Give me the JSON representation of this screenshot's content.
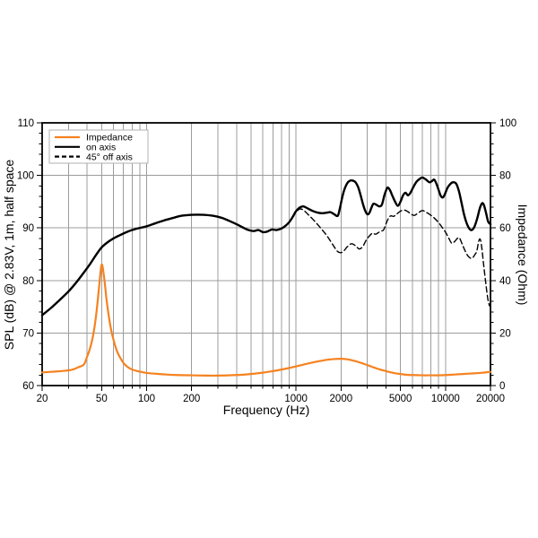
{
  "chart_data": {
    "type": "line",
    "title": "",
    "xlabel": "Frequency (Hz)",
    "ylabel_left": "SPL (dB) @ 2.83V, 1m, half space",
    "ylabel_right": "Impedance (Ohm)",
    "x_scale": "log",
    "xlim": [
      20,
      20000
    ],
    "ylim_left": [
      60,
      110
    ],
    "ylim_right": [
      0,
      100
    ],
    "grid": true,
    "grid_color": "#9c9c9c",
    "frame_color": "#000000",
    "background": "#ffffff",
    "x_major_ticks": [
      {
        "v": 20,
        "label": "20"
      },
      {
        "v": 50,
        "label": "50"
      },
      {
        "v": 100,
        "label": "100"
      },
      {
        "v": 200,
        "label": "200"
      },
      {
        "v": 1000,
        "label": "1000"
      },
      {
        "v": 2000,
        "label": "2000"
      },
      {
        "v": 5000,
        "label": "5000"
      },
      {
        "v": 10000,
        "label": "10000"
      },
      {
        "v": 20000,
        "label": "20000"
      }
    ],
    "x_minor_ticks": [
      30,
      40,
      60,
      70,
      80,
      90,
      300,
      400,
      500,
      600,
      700,
      800,
      900,
      3000,
      4000,
      6000,
      7000,
      8000,
      9000
    ],
    "y_left_ticks": [
      {
        "v": 60,
        "label": "60"
      },
      {
        "v": 70,
        "label": "70"
      },
      {
        "v": 80,
        "label": "80"
      },
      {
        "v": 90,
        "label": "90"
      },
      {
        "v": 100,
        "label": "100"
      },
      {
        "v": 110,
        "label": "110"
      }
    ],
    "y_left_minor_step": 2,
    "y_right_ticks": [
      {
        "v": 0,
        "label": "0"
      },
      {
        "v": 20,
        "label": "20"
      },
      {
        "v": 40,
        "label": "40"
      },
      {
        "v": 60,
        "label": "60"
      },
      {
        "v": 80,
        "label": "80"
      },
      {
        "v": 100,
        "label": "100"
      }
    ],
    "y_right_minor_step": 4,
    "legend": {
      "position": "top-left",
      "items": [
        {
          "label": "Impedance",
          "color": "#f58220",
          "dash": false
        },
        {
          "label": "on axis",
          "color": "#000000",
          "dash": false
        },
        {
          "label": "45° off axis",
          "color": "#000000",
          "dash": true
        }
      ]
    },
    "series": [
      {
        "name": "Impedance",
        "axis": "right",
        "color": "#f58220",
        "dash": false,
        "width": 2.2,
        "points": [
          [
            20,
            5
          ],
          [
            24,
            5.3
          ],
          [
            28,
            5.6
          ],
          [
            32,
            6.1
          ],
          [
            35,
            7
          ],
          [
            38,
            8
          ],
          [
            40,
            11
          ],
          [
            42,
            14.5
          ],
          [
            44,
            19.5
          ],
          [
            46,
            27
          ],
          [
            48,
            37
          ],
          [
            50,
            46
          ],
          [
            52,
            41
          ],
          [
            54,
            32.5
          ],
          [
            56,
            26
          ],
          [
            58,
            21
          ],
          [
            60,
            17.5
          ],
          [
            63,
            13.5
          ],
          [
            66,
            11
          ],
          [
            70,
            8.6
          ],
          [
            75,
            7
          ],
          [
            80,
            6.1
          ],
          [
            90,
            5.3
          ],
          [
            100,
            4.8
          ],
          [
            115,
            4.5
          ],
          [
            135,
            4.2
          ],
          [
            160,
            4
          ],
          [
            200,
            3.9
          ],
          [
            250,
            3.8
          ],
          [
            300,
            3.8
          ],
          [
            400,
            4
          ],
          [
            500,
            4.4
          ],
          [
            600,
            4.9
          ],
          [
            700,
            5.5
          ],
          [
            800,
            6.1
          ],
          [
            900,
            6.7
          ],
          [
            1000,
            7.3
          ],
          [
            1200,
            8.4
          ],
          [
            1400,
            9.2
          ],
          [
            1600,
            9.8
          ],
          [
            1800,
            10.1
          ],
          [
            2000,
            10.2
          ],
          [
            2200,
            10
          ],
          [
            2500,
            9.3
          ],
          [
            2800,
            8.4
          ],
          [
            3200,
            7.2
          ],
          [
            3600,
            6.2
          ],
          [
            4000,
            5.5
          ],
          [
            4500,
            4.8
          ],
          [
            5000,
            4.4
          ],
          [
            5500,
            4.1
          ],
          [
            6000,
            4
          ],
          [
            7000,
            3.9
          ],
          [
            8000,
            3.9
          ],
          [
            9000,
            3.9
          ],
          [
            10000,
            4
          ],
          [
            11500,
            4.2
          ],
          [
            13000,
            4.4
          ],
          [
            15000,
            4.6
          ],
          [
            17000,
            4.8
          ],
          [
            18500,
            5
          ],
          [
            19500,
            5.2
          ],
          [
            20000,
            5.2
          ]
        ]
      },
      {
        "name": "on axis",
        "axis": "left",
        "color": "#000000",
        "dash": false,
        "width": 2.4,
        "points": [
          [
            20,
            73.4
          ],
          [
            23,
            74.8
          ],
          [
            26,
            76.2
          ],
          [
            30,
            77.9
          ],
          [
            34,
            79.7
          ],
          [
            38,
            81.5
          ],
          [
            42,
            83.2
          ],
          [
            46,
            84.9
          ],
          [
            50,
            86.3
          ],
          [
            55,
            87.3
          ],
          [
            60,
            88
          ],
          [
            66,
            88.6
          ],
          [
            72,
            89.1
          ],
          [
            80,
            89.6
          ],
          [
            90,
            90
          ],
          [
            100,
            90.3
          ],
          [
            115,
            90.9
          ],
          [
            130,
            91.4
          ],
          [
            150,
            91.9
          ],
          [
            170,
            92.3
          ],
          [
            200,
            92.5
          ],
          [
            240,
            92.5
          ],
          [
            280,
            92.3
          ],
          [
            320,
            91.9
          ],
          [
            360,
            91.3
          ],
          [
            400,
            90.7
          ],
          [
            440,
            90.1
          ],
          [
            480,
            89.6
          ],
          [
            520,
            89.4
          ],
          [
            560,
            89.6
          ],
          [
            600,
            89.2
          ],
          [
            640,
            89.3
          ],
          [
            690,
            89.7
          ],
          [
            740,
            89.6
          ],
          [
            800,
            89.9
          ],
          [
            850,
            90.4
          ],
          [
            900,
            91.1
          ],
          [
            950,
            92.1
          ],
          [
            1000,
            93.2
          ],
          [
            1060,
            93.9
          ],
          [
            1120,
            94.1
          ],
          [
            1200,
            93.7
          ],
          [
            1300,
            93.2
          ],
          [
            1400,
            92.9
          ],
          [
            1500,
            92.8
          ],
          [
            1600,
            92.9
          ],
          [
            1700,
            93
          ],
          [
            1800,
            92.6
          ],
          [
            1900,
            92.3
          ],
          [
            1960,
            93.6
          ],
          [
            2030,
            95.6
          ],
          [
            2100,
            97.2
          ],
          [
            2200,
            98.5
          ],
          [
            2300,
            99
          ],
          [
            2400,
            99
          ],
          [
            2500,
            98.7
          ],
          [
            2600,
            97.8
          ],
          [
            2700,
            96.3
          ],
          [
            2800,
            94.6
          ],
          [
            2900,
            93.3
          ],
          [
            3000,
            92.6
          ],
          [
            3100,
            92.9
          ],
          [
            3200,
            93.9
          ],
          [
            3300,
            94.6
          ],
          [
            3450,
            94.4
          ],
          [
            3600,
            94.1
          ],
          [
            3750,
            94.4
          ],
          [
            3900,
            96.2
          ],
          [
            4000,
            97.1
          ],
          [
            4100,
            97.7
          ],
          [
            4250,
            97.2
          ],
          [
            4400,
            96.2
          ],
          [
            4600,
            95
          ],
          [
            4800,
            94.2
          ],
          [
            5000,
            95
          ],
          [
            5200,
            96.2
          ],
          [
            5400,
            96.7
          ],
          [
            5600,
            96.2
          ],
          [
            5800,
            96.6
          ],
          [
            6100,
            97.8
          ],
          [
            6400,
            98.8
          ],
          [
            6700,
            99.3
          ],
          [
            7000,
            99.6
          ],
          [
            7400,
            99.2
          ],
          [
            7800,
            98.7
          ],
          [
            8100,
            98.9
          ],
          [
            8400,
            99.2
          ],
          [
            8700,
            98.4
          ],
          [
            9000,
            97.2
          ],
          [
            9300,
            96.1
          ],
          [
            9600,
            95.8
          ],
          [
            9900,
            96.4
          ],
          [
            10300,
            97.6
          ],
          [
            10800,
            98.4
          ],
          [
            11300,
            98.7
          ],
          [
            11800,
            98.4
          ],
          [
            12300,
            97
          ],
          [
            12800,
            94.8
          ],
          [
            13300,
            92.6
          ],
          [
            13900,
            90.8
          ],
          [
            14500,
            89.8
          ],
          [
            15000,
            89.6
          ],
          [
            15600,
            90.2
          ],
          [
            16300,
            91.8
          ],
          [
            17000,
            93.8
          ],
          [
            17600,
            94.7
          ],
          [
            18100,
            94.3
          ],
          [
            18700,
            92.8
          ],
          [
            19300,
            91.2
          ],
          [
            20000,
            90.7
          ]
        ]
      },
      {
        "name": "45° off axis",
        "axis": "left",
        "color": "#000000",
        "dash": true,
        "width": 1.4,
        "points": [
          [
            950,
            92
          ],
          [
            1000,
            93
          ],
          [
            1060,
            93.6
          ],
          [
            1120,
            93.4
          ],
          [
            1200,
            92.6
          ],
          [
            1300,
            91.6
          ],
          [
            1400,
            90.6
          ],
          [
            1500,
            89.6
          ],
          [
            1600,
            88.6
          ],
          [
            1700,
            87.5
          ],
          [
            1800,
            86.4
          ],
          [
            1900,
            85.5
          ],
          [
            2000,
            85.3
          ],
          [
            2100,
            85.7
          ],
          [
            2200,
            86.4
          ],
          [
            2350,
            87
          ],
          [
            2500,
            86.6
          ],
          [
            2650,
            86
          ],
          [
            2800,
            86.5
          ],
          [
            2950,
            87.7
          ],
          [
            3100,
            88.5
          ],
          [
            3250,
            89
          ],
          [
            3400,
            88.8
          ],
          [
            3550,
            89.1
          ],
          [
            3700,
            89.4
          ],
          [
            3850,
            89.6
          ],
          [
            4000,
            90.8
          ],
          [
            4150,
            91.8
          ],
          [
            4300,
            92.3
          ],
          [
            4500,
            92.2
          ],
          [
            4700,
            92.6
          ],
          [
            5000,
            93.2
          ],
          [
            5300,
            93.4
          ],
          [
            5600,
            93.1
          ],
          [
            5900,
            92.6
          ],
          [
            6200,
            92.4
          ],
          [
            6600,
            92.9
          ],
          [
            7000,
            93.3
          ],
          [
            7400,
            93
          ],
          [
            7900,
            92.5
          ],
          [
            8400,
            91.9
          ],
          [
            9000,
            91
          ],
          [
            9500,
            90.1
          ],
          [
            10000,
            89.2
          ],
          [
            10500,
            88.1
          ],
          [
            11000,
            87.1
          ],
          [
            11500,
            87.4
          ],
          [
            12000,
            88
          ],
          [
            12400,
            88.1
          ],
          [
            12900,
            87
          ],
          [
            13500,
            85.7
          ],
          [
            14200,
            84.6
          ],
          [
            15000,
            84.2
          ],
          [
            15700,
            84.9
          ],
          [
            16200,
            85.6
          ],
          [
            16700,
            87.5
          ],
          [
            17100,
            87.8
          ],
          [
            17500,
            86.2
          ],
          [
            18000,
            83
          ],
          [
            18600,
            79.5
          ],
          [
            19200,
            76.5
          ],
          [
            19700,
            75.2
          ],
          [
            20000,
            75.5
          ]
        ]
      }
    ]
  }
}
